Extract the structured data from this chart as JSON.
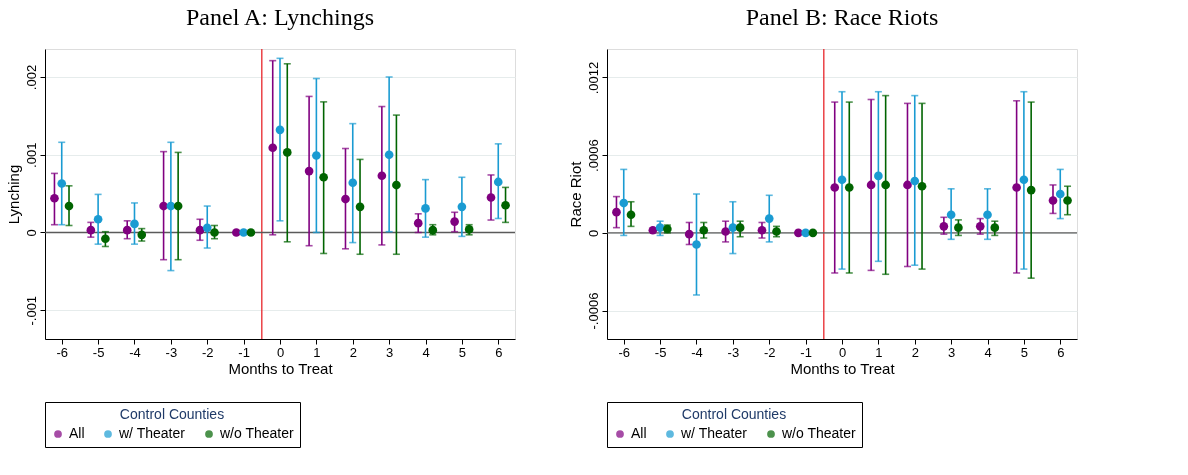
{
  "chart_data": [
    {
      "type": "scatter",
      "title": "Panel A: Lynchings",
      "xlabel": "Months to Treat",
      "ylabel": "Lynching",
      "legend_title": "Control Counties",
      "legend": "bottom",
      "grid": "y",
      "marker": "circle",
      "xlim": [
        -6.46,
        6.46
      ],
      "xticks": [
        -6,
        -5,
        -4,
        -3,
        -2,
        -1,
        0,
        1,
        2,
        3,
        4,
        5,
        6
      ],
      "ylim": [
        -0.00137,
        0.00236
      ],
      "yticks": [
        {
          "value": -0.001,
          "label": "-.001"
        },
        0,
        {
          "value": 0.001,
          "label": ".001"
        },
        {
          "value": 0.002,
          "label": ".002"
        }
      ],
      "ref_lines": [
        {
          "axis": "x",
          "value": -0.5,
          "color": "#e8262b"
        },
        {
          "axis": "y",
          "value": 0,
          "color": "#5a5a5a"
        }
      ],
      "series": [
        {
          "name": "All",
          "color": "#800080",
          "x": [
            -6.2,
            -5.2,
            -4.2,
            -3.2,
            -2.2,
            -1.2,
            -0.2,
            0.8,
            1.8,
            2.8,
            3.8,
            4.8,
            5.8
          ],
          "values": [
            0.00044,
            3e-05,
            3e-05,
            0.00034,
            3e-05,
            0,
            0.00109,
            0.00079,
            0.00043,
            0.00073,
            0.00012,
            0.00014,
            0.00045
          ],
          "errors": [
            [
              0.0001,
              0.00076
            ],
            [
              -6e-05,
              0.00013
            ],
            [
              -8e-05,
              0.00015
            ],
            [
              -0.00035,
              0.00104
            ],
            [
              -0.0001,
              0.00017
            ],
            null,
            [
              -3e-05,
              0.00221
            ],
            [
              -0.00017,
              0.00175
            ],
            [
              -0.00021,
              0.00108
            ],
            [
              -0.00016,
              0.00162
            ],
            [
              0,
              0.00024
            ],
            [
              1e-05,
              0.00026
            ],
            [
              0.00016,
              0.00074
            ]
          ]
        },
        {
          "name": "w/ Theater",
          "color": "#1a9bd2",
          "x": [
            -6,
            -5,
            -4,
            -3,
            -2,
            -1,
            0,
            1,
            2,
            3,
            4,
            5,
            6
          ],
          "values": [
            0.00063,
            0.00017,
            0.00011,
            0.00034,
            6e-05,
            0,
            0.00132,
            0.00099,
            0.00064,
            0.001,
            0.00031,
            0.00033,
            0.00065
          ],
          "errors": [
            [
              0.0001,
              0.00116
            ],
            [
              -0.00015,
              0.00049
            ],
            [
              -0.00015,
              0.00038
            ],
            [
              -0.00049,
              0.00116
            ],
            [
              -0.0002,
              0.00034
            ],
            null,
            [
              0.00015,
              0.00224
            ],
            [
              0,
              0.00198
            ],
            [
              -0.00013,
              0.0014
            ],
            [
              1e-05,
              0.002
            ],
            [
              -6e-05,
              0.00068
            ],
            [
              -5e-05,
              0.00071
            ],
            [
              0.00018,
              0.00114
            ]
          ]
        },
        {
          "name": "w/o Theater",
          "color": "#006400",
          "x": [
            -5.8,
            -4.8,
            -3.8,
            -2.8,
            -1.8,
            -0.8,
            0.2,
            1.2,
            2.2,
            3.2,
            4.2,
            5.2,
            6.2
          ],
          "values": [
            0.00034,
            -8e-05,
            -3e-05,
            0.00034,
            0,
            0,
            0.00103,
            0.00071,
            0.00033,
            0.00061,
            3e-05,
            4e-05,
            0.00035
          ],
          "errors": [
            [
              9e-05,
              0.0006
            ],
            [
              -0.00018,
              1e-05
            ],
            [
              -0.00011,
              5e-05
            ],
            [
              -0.00035,
              0.00103
            ],
            [
              -8e-05,
              9e-05
            ],
            null,
            [
              -0.00012,
              0.00217
            ],
            [
              -0.00027,
              0.00168
            ],
            [
              -0.00028,
              0.00094
            ],
            [
              -0.00028,
              0.00151
            ],
            [
              -3e-05,
              0.0001
            ],
            [
              -3e-05,
              0.0001
            ],
            [
              0.00013,
              0.00058
            ]
          ]
        }
      ]
    },
    {
      "type": "scatter",
      "title": "Panel B: Race Riots",
      "xlabel": "Months to Treat",
      "ylabel": "Race Riot",
      "legend_title": "Control Counties",
      "legend": "bottom",
      "grid": "y",
      "marker": "circle",
      "xlim": [
        -6.46,
        6.46
      ],
      "xticks": [
        -6,
        -5,
        -4,
        -3,
        -2,
        -1,
        0,
        1,
        2,
        3,
        4,
        5,
        6
      ],
      "ylim": [
        -0.00082,
        0.00142
      ],
      "yticks": [
        {
          "value": -0.0006,
          "label": "-.0006"
        },
        0,
        {
          "value": 0.0006,
          "label": ".0006"
        },
        {
          "value": 0.0012,
          "label": ".0012"
        }
      ],
      "ref_lines": [
        {
          "axis": "x",
          "value": -0.5,
          "color": "#e8262b"
        },
        {
          "axis": "y",
          "value": 0,
          "color": "#5a5a5a"
        }
      ],
      "series": [
        {
          "name": "All",
          "color": "#800080",
          "x": [
            -6.2,
            -5.2,
            -4.2,
            -3.2,
            -2.2,
            -1.2,
            -0.2,
            0.8,
            1.8,
            2.8,
            3.8,
            4.8,
            5.8
          ],
          "values": [
            0.00016,
            2e-05,
            -1e-05,
            1e-05,
            2e-05,
            0,
            0.00035,
            0.00037,
            0.00037,
            5e-05,
            5e-05,
            0.00035,
            0.00025
          ],
          "errors": [
            [
              4e-05,
              0.00028
            ],
            null,
            [
              -9e-05,
              8e-05
            ],
            [
              -7e-05,
              9e-05
            ],
            [
              -4e-05,
              8e-05
            ],
            null,
            [
              -0.00031,
              0.00101
            ],
            [
              -0.00029,
              0.00103
            ],
            [
              -0.00026,
              0.001
            ],
            [
              -1e-05,
              0.00012
            ],
            [
              -1e-05,
              0.00011
            ],
            [
              -0.00031,
              0.00102
            ],
            [
              0.00015,
              0.00037
            ]
          ]
        },
        {
          "name": "w/ Theater",
          "color": "#1a9bd2",
          "x": [
            -6,
            -5,
            -4,
            -3,
            -2,
            -1,
            0,
            1,
            2,
            3,
            4,
            5,
            6
          ],
          "values": [
            0.00023,
            4e-05,
            -9e-05,
            4e-05,
            0.00011,
            0,
            0.00041,
            0.00044,
            0.0004,
            0.00014,
            0.00014,
            0.00041,
            0.0003
          ],
          "errors": [
            [
              -2e-05,
              0.00049
            ],
            [
              -2e-05,
              9e-05
            ],
            [
              -0.00048,
              0.0003
            ],
            [
              -0.00016,
              0.00024
            ],
            [
              -7e-05,
              0.00029
            ],
            null,
            [
              -0.00028,
              0.00109
            ],
            [
              -0.00022,
              0.00109
            ],
            [
              -0.00025,
              0.00106
            ],
            [
              -5e-05,
              0.00034
            ],
            [
              -5e-05,
              0.00034
            ],
            [
              -0.00028,
              0.00109
            ],
            [
              0.00011,
              0.00049
            ]
          ]
        },
        {
          "name": "w/o Theater",
          "color": "#006400",
          "x": [
            -5.8,
            -4.8,
            -3.8,
            -2.8,
            -1.8,
            -0.8,
            0.2,
            1.2,
            2.2,
            3.2,
            4.2,
            5.2,
            6.2
          ],
          "values": [
            0.00014,
            3e-05,
            2e-05,
            4e-05,
            1e-05,
            0,
            0.00035,
            0.00037,
            0.00036,
            4e-05,
            4e-05,
            0.00033,
            0.00025
          ],
          "errors": [
            [
              5e-05,
              0.00024
            ],
            [
              0,
              6e-05
            ],
            [
              -4e-05,
              8e-05
            ],
            [
              -3e-05,
              9e-05
            ],
            [
              -3e-05,
              5e-05
            ],
            null,
            [
              -0.00031,
              0.00101
            ],
            [
              -0.00032,
              0.00106
            ],
            [
              -0.00028,
              0.001
            ],
            [
              -2e-05,
              0.0001
            ],
            [
              -2e-05,
              9e-05
            ],
            [
              -0.00035,
              0.00101
            ],
            [
              0.00014,
              0.00036
            ]
          ]
        }
      ]
    }
  ]
}
